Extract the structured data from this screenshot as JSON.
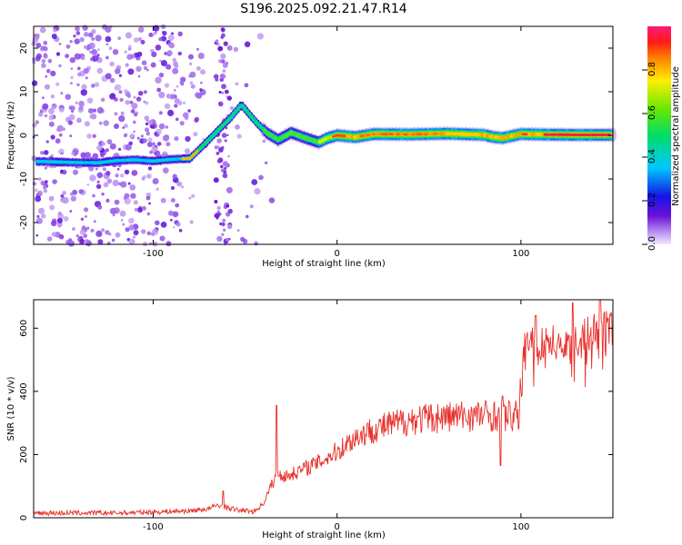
{
  "title": "S196.2025.092.21.47.R14",
  "colors": {
    "snr_line": "#e8302a",
    "axis": "#000000"
  },
  "chart_data": [
    {
      "type": "heatmap",
      "xlabel": "Height of straight line (km)",
      "ylabel": "Frequency (Hz)",
      "xlim": [
        -165,
        150
      ],
      "ylim": [
        -25,
        25
      ],
      "xticks": [
        {
          "v": -100,
          "t": "-100"
        },
        {
          "v": 0,
          "t": "0"
        },
        {
          "v": 100,
          "t": "100"
        }
      ],
      "yticks": [
        {
          "v": 20,
          "t": "20"
        },
        {
          "v": 10,
          "t": "10"
        },
        {
          "v": 0,
          "t": "0"
        },
        {
          "v": -10,
          "t": "-10"
        },
        {
          "v": -20,
          "t": "-20"
        }
      ],
      "colorbar": {
        "label": "Normalized spectral amplitude",
        "range": [
          0,
          1
        ],
        "colormap": "rainbow",
        "ticks": [
          {
            "v": 0.0,
            "t": "0.0"
          },
          {
            "v": 0.2,
            "t": "0.2"
          },
          {
            "v": 0.4,
            "t": "0.4"
          },
          {
            "v": 0.6,
            "t": "0.6"
          },
          {
            "v": 0.8,
            "t": "0.8"
          }
        ]
      },
      "ridge": [
        [
          -160,
          -6
        ],
        [
          -145,
          -6.2
        ],
        [
          -130,
          -6.3
        ],
        [
          -120,
          -5.8
        ],
        [
          -110,
          -5.6
        ],
        [
          -100,
          -5.9
        ],
        [
          -90,
          -5.5
        ],
        [
          -80,
          -5.3
        ],
        [
          -72,
          -2
        ],
        [
          -65,
          1
        ],
        [
          -58,
          4
        ],
        [
          -52,
          7
        ],
        [
          -48,
          5
        ],
        [
          -44,
          3
        ],
        [
          -38,
          0.5
        ],
        [
          -32,
          -1
        ],
        [
          -25,
          0.6
        ],
        [
          -18,
          -0.5
        ],
        [
          -10,
          -1.6
        ],
        [
          -5,
          -0.6
        ],
        [
          0,
          0
        ],
        [
          10,
          -0.4
        ],
        [
          20,
          0.3
        ],
        [
          40,
          0.2
        ],
        [
          60,
          0.4
        ],
        [
          80,
          0.1
        ],
        [
          85,
          -0.4
        ],
        [
          90,
          -0.6
        ],
        [
          100,
          0.3
        ],
        [
          110,
          0.2
        ],
        [
          130,
          0.1
        ],
        [
          150,
          0.1
        ]
      ]
    },
    {
      "type": "line",
      "xlabel": "Height of straight line (km)",
      "ylabel": "SNR (10 * v/v)",
      "xlim": [
        -165,
        150
      ],
      "ylim": [
        0,
        690
      ],
      "xticks": [
        {
          "v": -100,
          "t": "-100"
        },
        {
          "v": 0,
          "t": "0"
        },
        {
          "v": 100,
          "t": "100"
        }
      ],
      "yticks": [
        {
          "v": 0,
          "t": "0"
        },
        {
          "v": 200,
          "t": "200"
        },
        {
          "v": 400,
          "t": "400"
        },
        {
          "v": 600,
          "t": "600"
        }
      ],
      "trend": [
        [
          -165,
          15
        ],
        [
          -120,
          15
        ],
        [
          -100,
          18
        ],
        [
          -80,
          22
        ],
        [
          -70,
          28
        ],
        [
          -65,
          40
        ],
        [
          -55,
          25
        ],
        [
          -45,
          20
        ],
        [
          -40,
          45
        ],
        [
          -36,
          100
        ],
        [
          -32,
          140
        ],
        [
          -28,
          130
        ],
        [
          -20,
          150
        ],
        [
          -10,
          175
        ],
        [
          0,
          210
        ],
        [
          10,
          255
        ],
        [
          20,
          280
        ],
        [
          30,
          295
        ],
        [
          40,
          310
        ],
        [
          60,
          320
        ],
        [
          80,
          325
        ],
        [
          99,
          320
        ],
        [
          101,
          530
        ],
        [
          105,
          560
        ],
        [
          110,
          550
        ],
        [
          120,
          555
        ],
        [
          130,
          560
        ],
        [
          140,
          590
        ],
        [
          150,
          605
        ]
      ],
      "spikes": [
        [
          -62,
          85
        ],
        [
          -33,
          355
        ],
        [
          90,
          385
        ],
        [
          89,
          165
        ],
        [
          108,
          640
        ],
        [
          128,
          680
        ],
        [
          143,
          690
        ]
      ]
    }
  ]
}
